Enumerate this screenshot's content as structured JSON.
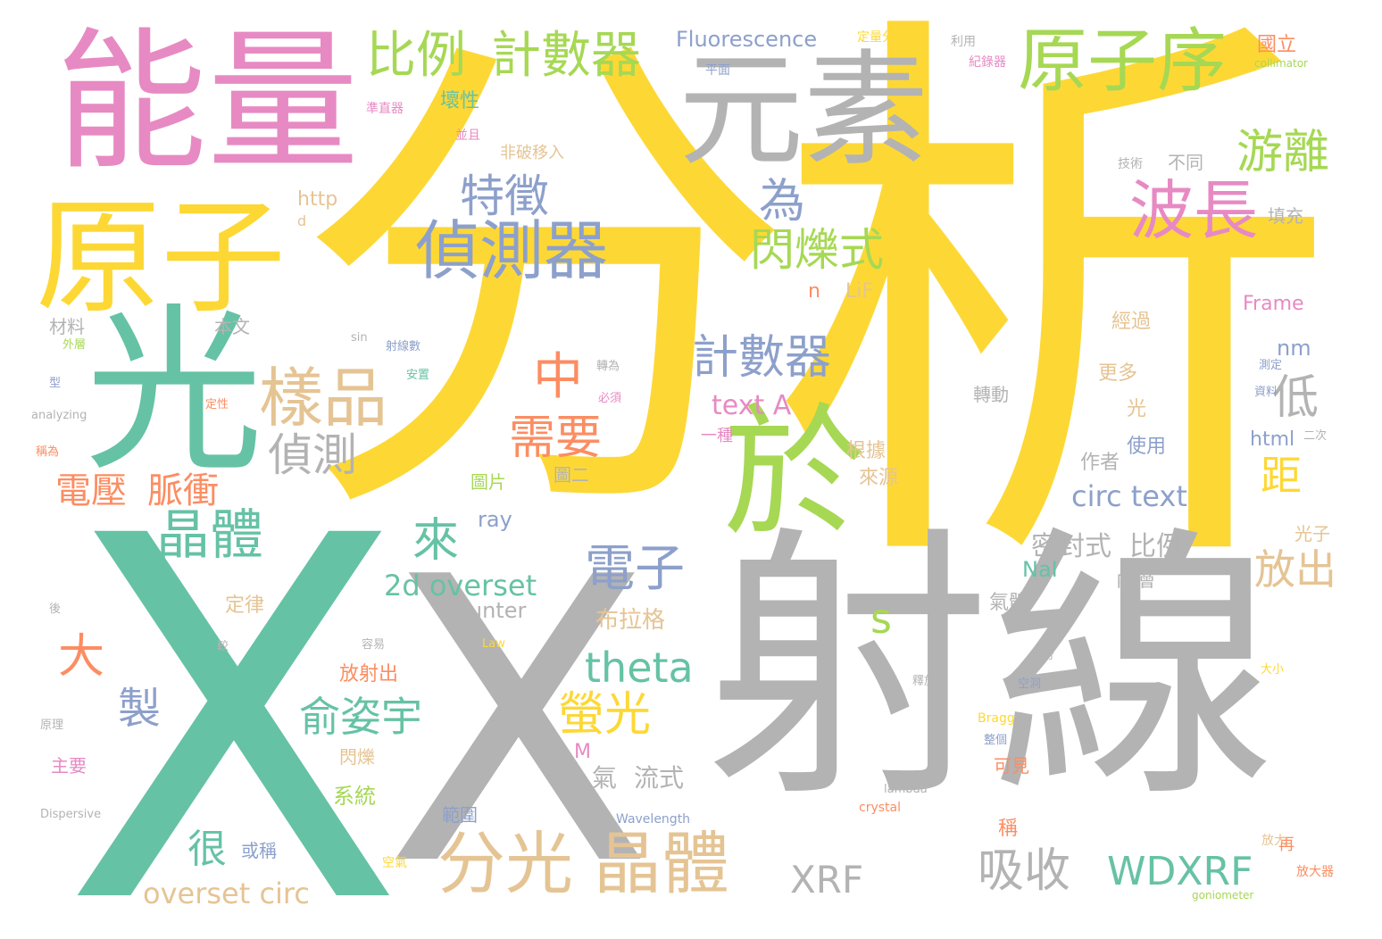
{
  "words": {
    "xi": "析",
    "fen": "分",
    "x1": "X",
    "x2": "X",
    "sheline": "射線",
    "nengliang": "能量",
    "yuansu": "元素",
    "guang": "光",
    "yuanzi": "原子",
    "yuanzixu": "原子序",
    "bochang": "波長",
    "zhencegi": "偵測器",
    "yu": "於",
    "bili": "比例",
    "jishuqi1": "計數器",
    "jishuqi2": "計數器",
    "youli": "游離",
    "tezheng": "特徵",
    "wei": "為",
    "shanshuoshi": "閃爍式",
    "yangpin": "樣品",
    "zhong": "中",
    "zhence": "偵測",
    "jingti1": "晶體",
    "jingti2": "晶體",
    "fenguang": "分光",
    "xuyao": "需要",
    "dianzi": "電子",
    "lai": "來",
    "di": "低",
    "ju": "距",
    "fangchu": "放出",
    "dianya": "電壓",
    "maichong": "脈衝",
    "da": "大",
    "s": "s",
    "theta": "theta",
    "yingguang": "螢光",
    "zhi": "製",
    "yuziyu": "俞姿宇",
    "hen": "很",
    "xishou": "吸收",
    "wdxrf": "WDXRF",
    "xrf": "XRF",
    "overset2d": "2d overset",
    "oversetcirc": "overset circ",
    "circtext": "circ text",
    "texta": "text A",
    "fluorescence": "Fluorescence",
    "mifengshi": "密封式",
    "bili2": "比例",
    "counter": "counter",
    "nai": "NaI",
    "neiceng": "內層",
    "qiti": "氣體",
    "bulage": "布拉格",
    "qi": "氣",
    "liushi": "流式",
    "ray": "ray",
    "nm": "nm",
    "html": "html",
    "frame": "Frame",
    "lif": "LiF",
    "n": "n",
    "yizhong": "一種",
    "zuozhe": "作者",
    "shiyong": "使用",
    "genju": "根據",
    "laiyuan": "來源",
    "tupian": "圖片",
    "tuer": "圖二",
    "guangzi": "光子",
    "dinglv": "定律",
    "fangshechu": "放射出",
    "shanshuo": "閃爍",
    "xitong": "系統",
    "fanwei": "範圍",
    "huocheng": "或稱",
    "gengduo": "更多",
    "jingguo": "經過",
    "zhuandong": "轉動",
    "guang2": "光",
    "http": "http",
    "d": "d",
    "bentou": "本文",
    "cailiao": "材料",
    "huaixing": "壞性",
    "feipohuai": "非破移入",
    "zhuyao": "主要",
    "m": "M",
    "kejian": "可見",
    "cheng": "稱",
    "zai": "再",
    "tianchong": "填充",
    "butong": "不同",
    "jishu": "技術",
    "guoli": "國立",
    "collimator": "collimator",
    "dingliangfenxi": "定量分析",
    "liyong": "利用",
    "jiluqi": "紀錄器",
    "pingmian": "平面",
    "zhunzhiqi": "準直器",
    "bingqie": "並且",
    "sin": "sin",
    "analyzing": "analyzing",
    "dispersive": "Dispersive",
    "wavelength": "Wavelength",
    "lambda": "lambda",
    "crystal": "crystal",
    "bragg": "Bragg",
    "law": "Law",
    "goniometer": "goniometer",
    "fangdaqi": "放大器",
    "fangda": "放大",
    "kongqi": "空氣",
    "shebasui": "射線數",
    "anzhi": "安置",
    "bixu": "必須",
    "zhuanwei": "轉為",
    "dingxing": "定性",
    "waiceng": "外層",
    "xing": "型",
    "chengwei": "稱為",
    "yuanli": "原理",
    "hou": "後",
    "jiao": "較",
    "rongyi": "容易",
    "shifang": "釋放",
    "pingxing": "平行",
    "kongdong": "空洞",
    "zhengge": "整個",
    "dayu": "大小",
    "ceshi": "測定",
    "ziliao": "資料",
    "ercijia": "二次"
  },
  "colors": {
    "yellow": "#fdd835",
    "green": "#66c2a5",
    "gray": "#b3b3b3",
    "pink": "#e78ac3",
    "lime": "#a6d854",
    "orange": "#fc8d62",
    "blue": "#8da0cb",
    "tan": "#e5c494"
  }
}
